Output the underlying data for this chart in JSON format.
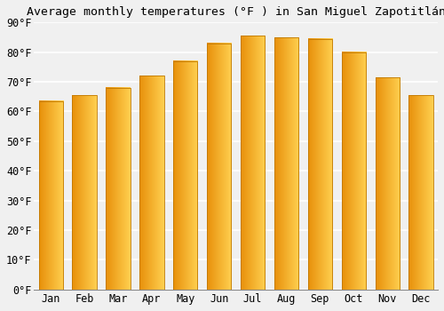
{
  "title": "Average monthly temperatures (°F ) in San Miguel Zapotitlán",
  "months": [
    "Jan",
    "Feb",
    "Mar",
    "Apr",
    "May",
    "Jun",
    "Jul",
    "Aug",
    "Sep",
    "Oct",
    "Nov",
    "Dec"
  ],
  "values": [
    63.5,
    65.5,
    68,
    72,
    77,
    83,
    85.5,
    85,
    84.5,
    80,
    71.5,
    65.5
  ],
  "bar_color_dark": "#E8900A",
  "bar_color_light": "#FFD050",
  "bar_edge_color": "#C07800",
  "ylim": [
    0,
    90
  ],
  "yticks": [
    0,
    10,
    20,
    30,
    40,
    50,
    60,
    70,
    80,
    90
  ],
  "background_color": "#f0f0f0",
  "plot_bg_color": "#f0f0f0",
  "grid_color": "#ffffff",
  "title_fontsize": 9.5,
  "tick_fontsize": 8.5
}
